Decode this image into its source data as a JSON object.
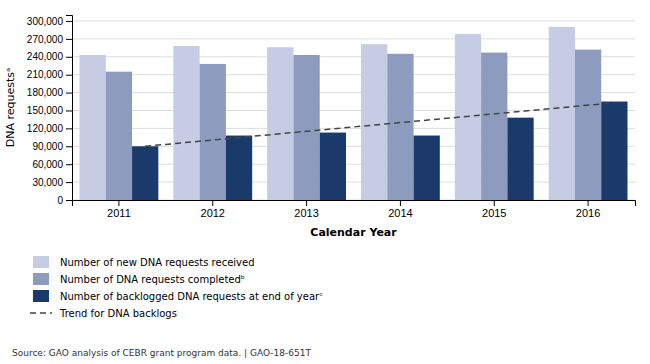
{
  "chart_data": {
    "type": "bar",
    "categories": [
      "2011",
      "2012",
      "2013",
      "2014",
      "2015",
      "2016"
    ],
    "series": [
      {
        "name": "Number of new DNA requests received",
        "type": "bar",
        "color": "#c5cce3",
        "values": [
          243000,
          258000,
          256000,
          261000,
          278000,
          290000
        ]
      },
      {
        "name": "Number of DNA requests completedᵇ",
        "type": "bar",
        "color": "#8d9bbf",
        "values": [
          215000,
          228000,
          243000,
          245000,
          247000,
          252000
        ]
      },
      {
        "name": "Number of backlogged DNA requests at end of yearᶜ",
        "type": "bar",
        "color": "#1a3a6b",
        "values": [
          90000,
          108000,
          113000,
          108000,
          138000,
          165000
        ]
      },
      {
        "name": "Trend for DNA backlogs",
        "type": "line",
        "color": "#444444",
        "line_style": "dashed",
        "x": [
          "2011",
          "2016"
        ],
        "values": [
          90000,
          163000
        ]
      }
    ],
    "ylabel": "DNA requestsᵃ",
    "xlabel": "Calendar Year",
    "ylim": [
      0,
      310000
    ],
    "yticks": [
      0,
      {
        "value": 30000,
        "label": "30,000"
      },
      {
        "value": 60000,
        "label": "60,000"
      },
      {
        "value": 90000,
        "label": "90,000"
      },
      {
        "value": 120000,
        "label": "120,000"
      },
      {
        "value": 150000,
        "label": "150,000"
      },
      {
        "value": 180000,
        "label": "180,000"
      },
      {
        "value": 210000,
        "label": "210,000"
      },
      {
        "value": 240000,
        "label": "240,000"
      },
      {
        "value": 270000,
        "label": "270,000"
      },
      {
        "value": 300000,
        "label": "300,000"
      }
    ],
    "grid": true,
    "legend": "bottom",
    "annotations": [
      "Source: GAO analysis of CEBR grant program data.  |  GAO-18-651T"
    ]
  }
}
